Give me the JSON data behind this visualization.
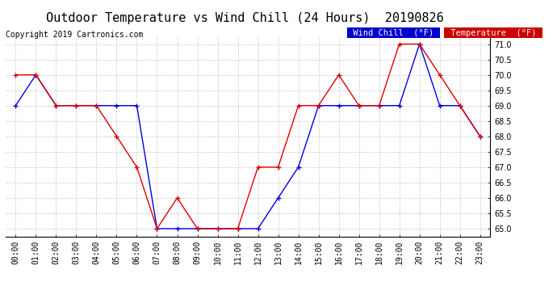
{
  "title": "Outdoor Temperature vs Wind Chill (24 Hours)  20190826",
  "copyright": "Copyright 2019 Cartronics.com",
  "ylim": [
    64.75,
    71.25
  ],
  "yticks": [
    65.0,
    65.5,
    66.0,
    66.5,
    67.0,
    67.5,
    68.0,
    68.5,
    69.0,
    69.5,
    70.0,
    70.5,
    71.0
  ],
  "hours": [
    0,
    1,
    2,
    3,
    4,
    5,
    6,
    7,
    8,
    9,
    10,
    11,
    12,
    13,
    14,
    15,
    16,
    17,
    18,
    19,
    20,
    21,
    22,
    23
  ],
  "xtick_labels": [
    "00:00",
    "01:00",
    "02:00",
    "03:00",
    "04:00",
    "05:00",
    "06:00",
    "07:00",
    "08:00",
    "09:00",
    "10:00",
    "11:00",
    "12:00",
    "13:00",
    "14:00",
    "15:00",
    "16:00",
    "17:00",
    "18:00",
    "19:00",
    "20:00",
    "21:00",
    "22:00",
    "23:00"
  ],
  "wind_chill": [
    69.0,
    70.0,
    69.0,
    69.0,
    69.0,
    69.0,
    69.0,
    65.0,
    65.0,
    65.0,
    65.0,
    65.0,
    65.0,
    66.0,
    67.0,
    69.0,
    69.0,
    69.0,
    69.0,
    69.0,
    71.0,
    69.0,
    69.0,
    68.0
  ],
  "temperature": [
    70.0,
    70.0,
    69.0,
    69.0,
    69.0,
    68.0,
    67.0,
    65.0,
    66.0,
    65.0,
    65.0,
    65.0,
    67.0,
    67.0,
    69.0,
    69.0,
    70.0,
    69.0,
    69.0,
    71.0,
    71.0,
    70.0,
    69.0,
    68.0
  ],
  "wind_chill_color": "#0000dd",
  "temperature_color": "#dd0000",
  "background_color": "#ffffff",
  "grid_color": "#bbbbbb",
  "title_fontsize": 11,
  "copyright_fontsize": 7,
  "tick_fontsize": 7,
  "legend_wind_chill_bg": "#0000cc",
  "legend_temp_bg": "#cc0000",
  "legend_text_color": "#ffffff",
  "legend_fontsize": 7.5
}
